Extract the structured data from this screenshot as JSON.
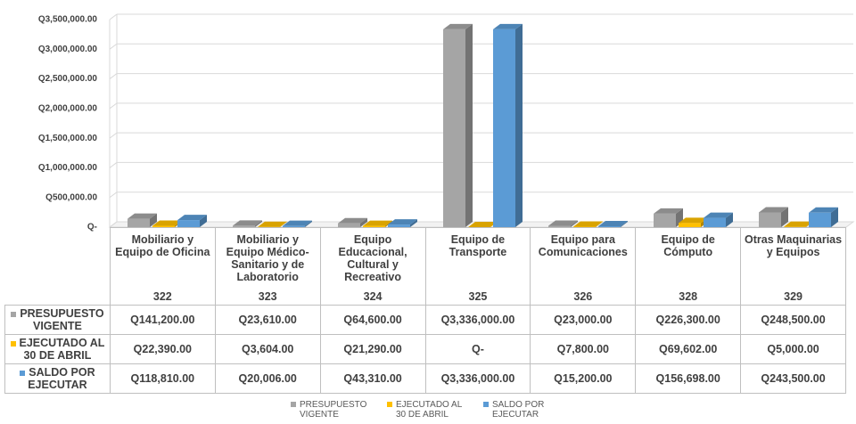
{
  "chart_data": {
    "type": "bar3d",
    "categories": [
      "Mobiliario y Equipo de Oficina",
      "Mobiliario y Equipo Médico-Sanitario y de Laboratorio",
      "Equipo Educacional, Cultural y Recreativo",
      "Equipo de Transporte",
      "Equipo para Comunicaciones",
      "Equipo de Cómputo",
      "Otras Maquinarias y Equipos"
    ],
    "category_codes": [
      "322",
      "323",
      "324",
      "325",
      "326",
      "328",
      "329"
    ],
    "series": [
      {
        "name": "PRESUPUESTO VIGENTE",
        "color": "#a5a5a5",
        "values": [
          141200,
          23610,
          64600,
          3336000,
          23000,
          226300,
          248500
        ],
        "value_labels": [
          "Q141,200.00",
          "Q23,610.00",
          "Q64,600.00",
          "Q3,336,000.00",
          "Q23,000.00",
          "Q226,300.00",
          "Q248,500.00"
        ]
      },
      {
        "name": "EJECUTADO AL 30 DE ABRIL",
        "color": "#ffc000",
        "values": [
          22390,
          3604,
          21290,
          0,
          7800,
          69602,
          5000
        ],
        "value_labels": [
          "Q22,390.00",
          "Q3,604.00",
          "Q21,290.00",
          "Q-",
          "Q7,800.00",
          "Q69,602.00",
          "Q5,000.00"
        ]
      },
      {
        "name": "SALDO POR EJECUTAR",
        "color": "#5b9bd5",
        "values": [
          118810,
          20006,
          43310,
          3336000,
          15200,
          156698,
          243500
        ],
        "value_labels": [
          "Q118,810.00",
          "Q20,006.00",
          "Q43,310.00",
          "Q3,336,000.00",
          "Q15,200.00",
          "Q156,698.00",
          "Q243,500.00"
        ]
      }
    ],
    "ylim": [
      0,
      3500000
    ],
    "yticks": [
      {
        "value": 0,
        "label": "Q-"
      },
      {
        "value": 500000,
        "label": "Q500,000.00"
      },
      {
        "value": 1000000,
        "label": "Q1,000,000.00"
      },
      {
        "value": 1500000,
        "label": "Q1,500,000.00"
      },
      {
        "value": 2000000,
        "label": "Q2,000,000.00"
      },
      {
        "value": 2500000,
        "label": "Q2,500,000.00"
      },
      {
        "value": 3000000,
        "label": "Q3,000,000.00"
      },
      {
        "value": 3500000,
        "label": "Q3,500,000.00"
      }
    ],
    "grid": true,
    "legend": "bottom"
  }
}
